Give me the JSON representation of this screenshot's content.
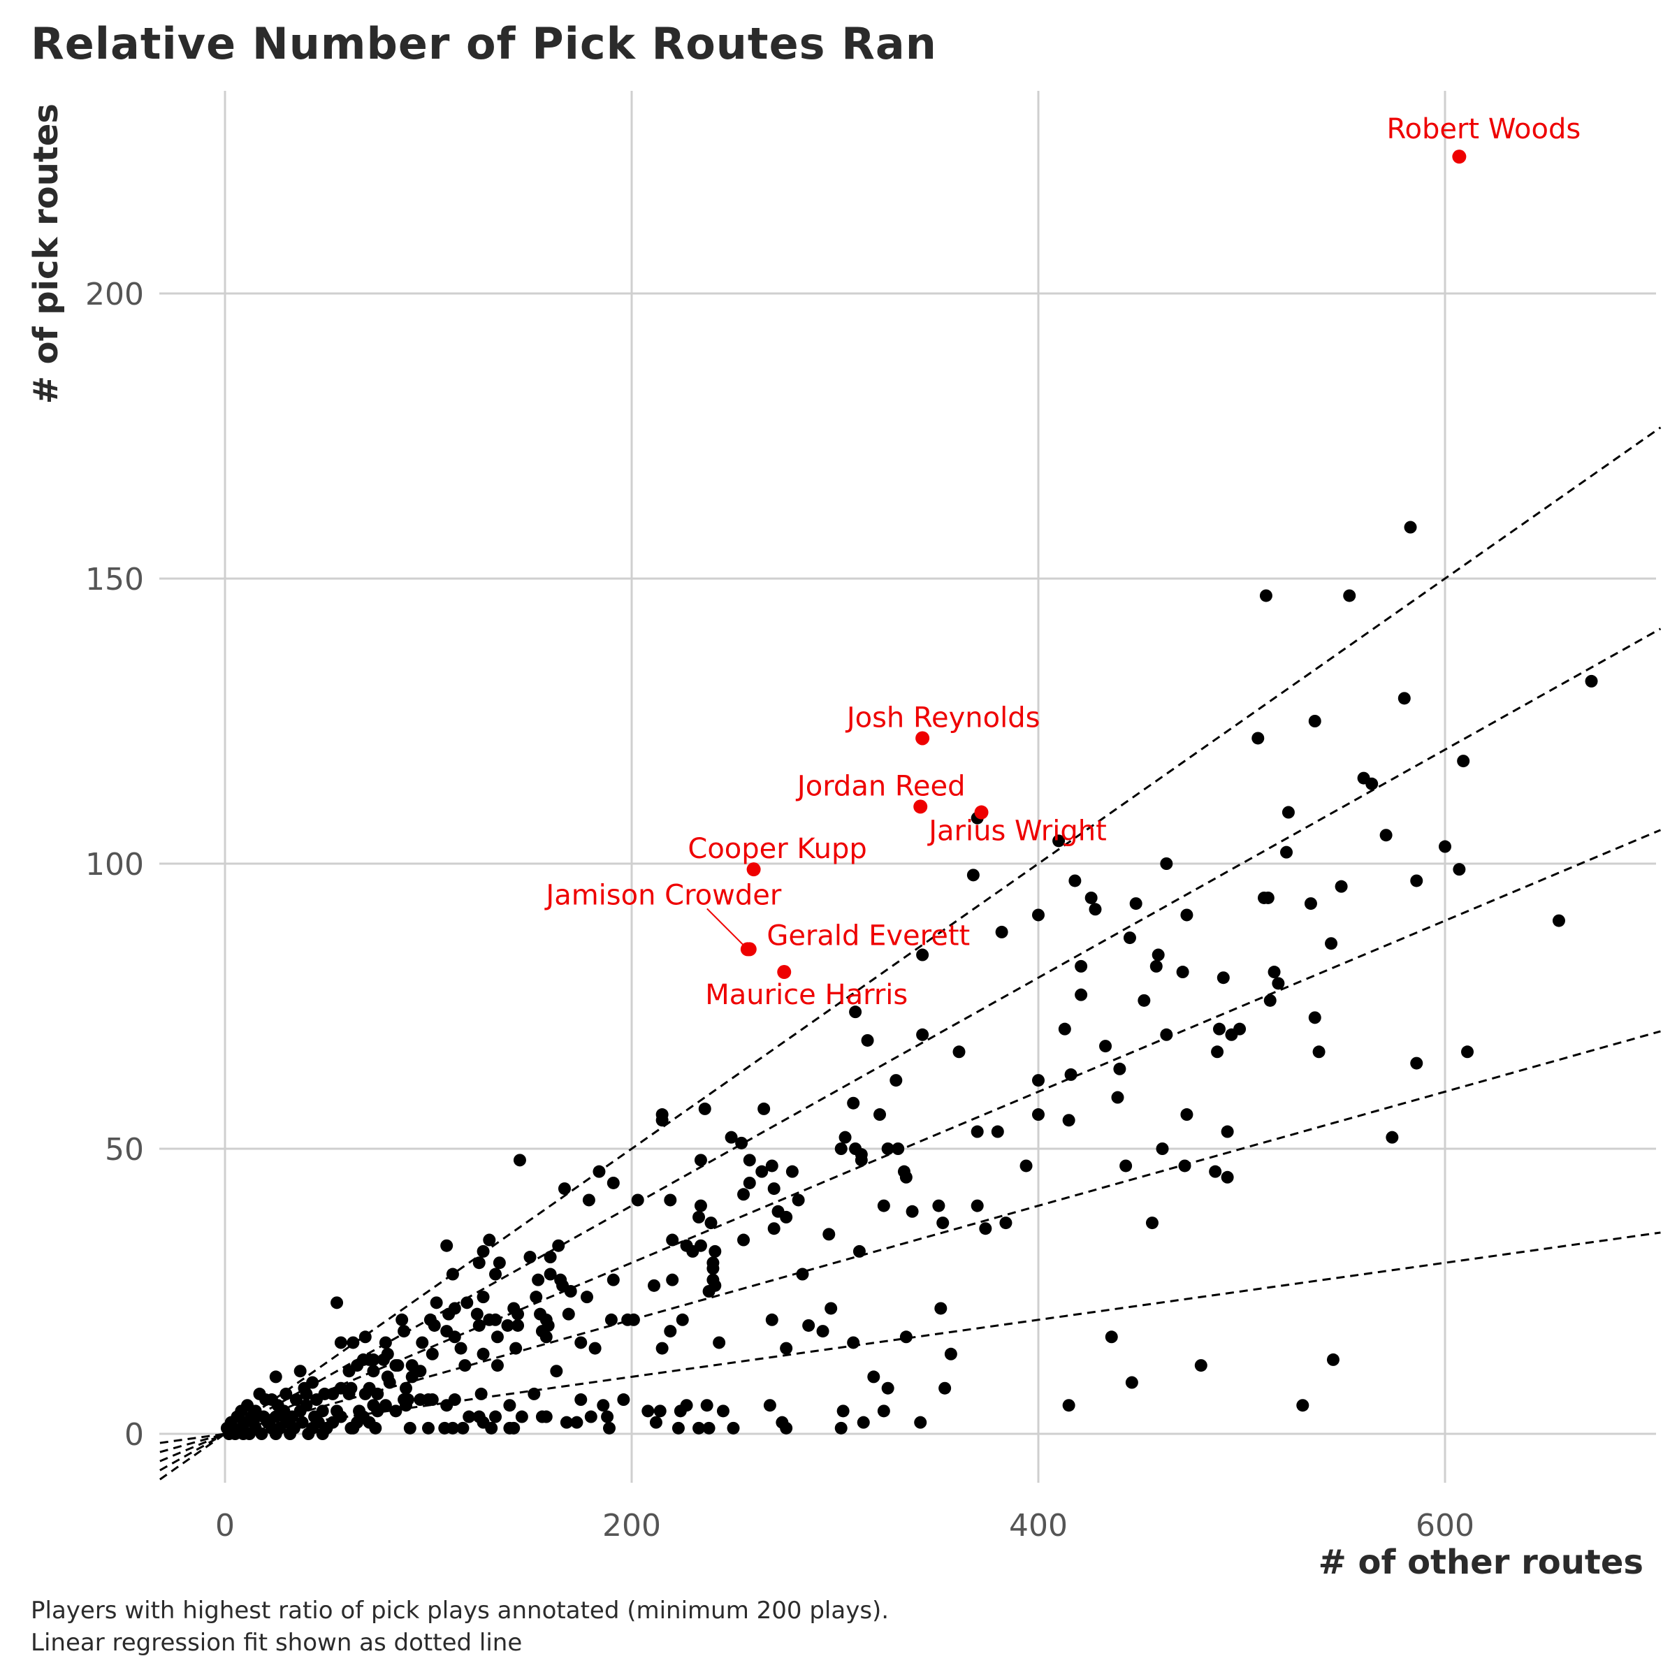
{
  "chart_data": {
    "type": "scatter",
    "title": "Relative Number of Pick Routes Ran",
    "xlabel": "# of other routes",
    "ylabel": "# of pick routes",
    "caption_lines": [
      "Players with highest ratio of pick plays annotated (minimum 200 plays).",
      "Linear regression fit shown as dotted line"
    ],
    "xlim": [
      -32,
      706
    ],
    "ylim": [
      -8,
      236
    ],
    "x_ticks": [
      0,
      200,
      400,
      600
    ],
    "y_ticks": [
      0,
      50,
      100,
      150,
      200
    ],
    "grid": true,
    "colors": {
      "highlight": "#ee0000",
      "points": "#000000",
      "grid": "#cfcfcf",
      "text": "#2b2b2b",
      "axis_text": "#555555"
    },
    "reference_lines": [
      {
        "slope": 0.25,
        "style": "dashed"
      },
      {
        "slope": 0.2,
        "style": "dashed"
      },
      {
        "slope": 0.15,
        "style": "dashed"
      },
      {
        "slope": 0.1,
        "style": "dashed"
      },
      {
        "slope": 0.05,
        "style": "dashed"
      }
    ],
    "highlighted": [
      {
        "name": "Robert Woods",
        "x": 607,
        "y": 224
      },
      {
        "name": "Josh Reynolds",
        "x": 343,
        "y": 122
      },
      {
        "name": "Jordan Reed",
        "x": 342,
        "y": 110
      },
      {
        "name": "Jarius Wright",
        "x": 372,
        "y": 109
      },
      {
        "name": "Cooper Kupp",
        "x": 260,
        "y": 99
      },
      {
        "name": "Jamison Crowder",
        "x": 257,
        "y": 85
      },
      {
        "name": "Gerald Everett",
        "x": 258,
        "y": 85
      },
      {
        "name": "Maurice Harris",
        "x": 275,
        "y": 81
      }
    ],
    "points": [
      [
        583,
        159
      ],
      [
        512,
        147
      ],
      [
        553,
        147
      ],
      [
        672,
        132
      ],
      [
        580,
        129
      ],
      [
        536,
        125
      ],
      [
        508,
        122
      ],
      [
        609,
        118
      ],
      [
        560,
        115
      ],
      [
        564,
        114
      ],
      [
        523,
        109
      ],
      [
        370,
        108
      ],
      [
        571,
        105
      ],
      [
        410,
        104
      ],
      [
        600,
        103
      ],
      [
        522,
        102
      ],
      [
        607,
        99
      ],
      [
        368,
        98
      ],
      [
        586,
        97
      ],
      [
        418,
        97
      ],
      [
        463,
        100
      ],
      [
        549,
        96
      ],
      [
        511,
        94
      ],
      [
        513,
        94
      ],
      [
        426,
        94
      ],
      [
        534,
        93
      ],
      [
        448,
        93
      ],
      [
        428,
        92
      ],
      [
        400,
        91
      ],
      [
        473,
        91
      ],
      [
        656,
        90
      ],
      [
        382,
        88
      ],
      [
        544,
        86
      ],
      [
        445,
        87
      ],
      [
        343,
        84
      ],
      [
        459,
        84
      ],
      [
        458,
        82
      ],
      [
        421,
        82
      ],
      [
        516,
        81
      ],
      [
        471,
        81
      ],
      [
        491,
        80
      ],
      [
        518,
        79
      ],
      [
        421,
        77
      ],
      [
        514,
        76
      ],
      [
        452,
        76
      ],
      [
        310,
        74
      ],
      [
        536,
        73
      ],
      [
        413,
        71
      ],
      [
        489,
        71
      ],
      [
        499,
        71
      ],
      [
        495,
        70
      ],
      [
        343,
        70
      ],
      [
        463,
        70
      ],
      [
        316,
        69
      ],
      [
        433,
        68
      ],
      [
        361,
        67
      ],
      [
        488,
        67
      ],
      [
        538,
        67
      ],
      [
        611,
        67
      ],
      [
        586,
        65
      ],
      [
        440,
        64
      ],
      [
        416,
        63
      ],
      [
        400,
        62
      ],
      [
        330,
        62
      ],
      [
        439,
        59
      ],
      [
        309,
        58
      ],
      [
        400,
        56
      ],
      [
        322,
        56
      ],
      [
        473,
        56
      ],
      [
        415,
        55
      ],
      [
        236,
        57
      ],
      [
        215,
        56
      ],
      [
        215,
        55
      ],
      [
        265,
        57
      ],
      [
        370,
        53
      ],
      [
        380,
        53
      ],
      [
        493,
        53
      ],
      [
        574,
        52
      ],
      [
        249,
        52
      ],
      [
        305,
        52
      ],
      [
        254,
        51
      ],
      [
        326,
        50
      ],
      [
        310,
        50
      ],
      [
        303,
        50
      ],
      [
        313,
        49
      ],
      [
        234,
        48
      ],
      [
        258,
        48
      ],
      [
        461,
        50
      ],
      [
        145,
        48
      ],
      [
        331,
        50
      ],
      [
        269,
        47
      ],
      [
        264,
        46
      ],
      [
        394,
        47
      ],
      [
        334,
        46
      ],
      [
        443,
        47
      ],
      [
        472,
        47
      ],
      [
        279,
        46
      ],
      [
        184,
        46
      ],
      [
        487,
        46
      ],
      [
        313,
        48
      ],
      [
        335,
        45
      ],
      [
        493,
        45
      ],
      [
        191,
        44
      ],
      [
        258,
        44
      ],
      [
        255,
        42
      ],
      [
        270,
        43
      ],
      [
        167,
        43
      ],
      [
        203,
        41
      ],
      [
        179,
        41
      ],
      [
        219,
        41
      ],
      [
        282,
        41
      ],
      [
        234,
        40
      ],
      [
        351,
        40
      ],
      [
        324,
        40
      ],
      [
        370,
        40
      ],
      [
        272,
        39
      ],
      [
        338,
        39
      ],
      [
        233,
        38
      ],
      [
        276,
        38
      ],
      [
        353,
        37
      ],
      [
        384,
        37
      ],
      [
        239,
        37
      ],
      [
        270,
        36
      ],
      [
        374,
        36
      ],
      [
        297,
        35
      ],
      [
        456,
        37
      ],
      [
        220,
        34
      ],
      [
        255,
        34
      ],
      [
        130,
        34
      ],
      [
        150,
        31
      ],
      [
        160,
        31
      ],
      [
        234,
        33
      ],
      [
        227,
        33
      ],
      [
        230,
        32
      ],
      [
        164,
        33
      ],
      [
        241,
        32
      ],
      [
        109,
        33
      ],
      [
        127,
        32
      ],
      [
        135,
        30
      ],
      [
        125,
        30
      ],
      [
        240,
        30
      ],
      [
        312,
        32
      ],
      [
        240,
        29
      ],
      [
        133,
        28
      ],
      [
        160,
        28
      ],
      [
        112,
        28
      ],
      [
        165,
        27
      ],
      [
        154,
        27
      ],
      [
        166,
        26
      ],
      [
        240,
        27
      ],
      [
        284,
        28
      ],
      [
        191,
        27
      ],
      [
        220,
        27
      ],
      [
        211,
        26
      ],
      [
        241,
        26
      ],
      [
        238,
        25
      ],
      [
        170,
        25
      ],
      [
        153,
        24
      ],
      [
        104,
        23
      ],
      [
        127,
        24
      ],
      [
        119,
        23
      ],
      [
        142,
        22
      ],
      [
        113,
        22
      ],
      [
        169,
        21
      ],
      [
        155,
        21
      ],
      [
        110,
        21
      ],
      [
        124,
        21
      ],
      [
        144,
        21
      ],
      [
        178,
        24
      ],
      [
        101,
        20
      ],
      [
        130,
        20
      ],
      [
        133,
        20
      ],
      [
        158,
        20
      ],
      [
        125,
        19
      ],
      [
        87,
        20
      ],
      [
        109,
        18
      ],
      [
        139,
        19
      ],
      [
        103,
        19
      ],
      [
        144,
        19
      ],
      [
        159,
        19
      ],
      [
        190,
        20
      ],
      [
        198,
        20
      ],
      [
        201,
        20
      ],
      [
        225,
        20
      ],
      [
        269,
        20
      ],
      [
        287,
        19
      ],
      [
        294,
        18
      ],
      [
        298,
        22
      ],
      [
        352,
        22
      ],
      [
        219,
        18
      ],
      [
        156,
        18
      ],
      [
        113,
        17
      ],
      [
        69,
        17
      ],
      [
        88,
        18
      ],
      [
        97,
        16
      ],
      [
        134,
        17
      ],
      [
        158,
        17
      ],
      [
        175,
        16
      ],
      [
        215,
        15
      ],
      [
        243,
        16
      ],
      [
        276,
        15
      ],
      [
        309,
        16
      ],
      [
        335,
        17
      ],
      [
        357,
        14
      ],
      [
        436,
        17
      ],
      [
        480,
        12
      ],
      [
        545,
        13
      ],
      [
        79,
        16
      ],
      [
        63,
        16
      ],
      [
        57,
        16
      ],
      [
        55,
        23
      ],
      [
        116,
        15
      ],
      [
        127,
        14
      ],
      [
        143,
        15
      ],
      [
        182,
        15
      ],
      [
        102,
        14
      ],
      [
        80,
        14
      ],
      [
        73,
        13
      ],
      [
        68,
        13
      ],
      [
        71,
        13
      ],
      [
        78,
        13
      ],
      [
        85,
        12
      ],
      [
        92,
        12
      ],
      [
        118,
        12
      ],
      [
        134,
        12
      ],
      [
        84,
        12
      ],
      [
        61,
        11
      ],
      [
        65,
        12
      ],
      [
        73,
        11
      ],
      [
        80,
        10
      ],
      [
        92,
        10
      ],
      [
        96,
        11
      ],
      [
        163,
        11
      ],
      [
        319,
        10
      ],
      [
        326,
        8
      ],
      [
        354,
        8
      ],
      [
        446,
        9
      ],
      [
        37,
        11
      ],
      [
        43,
        9
      ],
      [
        25,
        10
      ],
      [
        39,
        8
      ],
      [
        57,
        8
      ],
      [
        62,
        8
      ],
      [
        71,
        8
      ],
      [
        81,
        9
      ],
      [
        89,
        8
      ],
      [
        49,
        7
      ],
      [
        61,
        7
      ],
      [
        90,
        6
      ],
      [
        69,
        7
      ],
      [
        17,
        7
      ],
      [
        30,
        7
      ],
      [
        40,
        7
      ],
      [
        53,
        7
      ],
      [
        75,
        7
      ],
      [
        88,
        6
      ],
      [
        96,
        6
      ],
      [
        100,
        6
      ],
      [
        102,
        6
      ],
      [
        113,
        6
      ],
      [
        126,
        7
      ],
      [
        152,
        7
      ],
      [
        175,
        6
      ],
      [
        196,
        6
      ],
      [
        20,
        6
      ],
      [
        23,
        6
      ],
      [
        35,
        6
      ],
      [
        45,
        6
      ],
      [
        73,
        5
      ],
      [
        79,
        5
      ],
      [
        89,
        5
      ],
      [
        109,
        5
      ],
      [
        140,
        5
      ],
      [
        186,
        5
      ],
      [
        268,
        5
      ],
      [
        237,
        5
      ],
      [
        227,
        5
      ],
      [
        224,
        4
      ],
      [
        208,
        4
      ],
      [
        214,
        4
      ],
      [
        245,
        4
      ],
      [
        304,
        4
      ],
      [
        324,
        4
      ],
      [
        415,
        5
      ],
      [
        530,
        5
      ],
      [
        11,
        5
      ],
      [
        26,
        5
      ],
      [
        40,
        5
      ],
      [
        48,
        4
      ],
      [
        66,
        4
      ],
      [
        75,
        4
      ],
      [
        84,
        4
      ],
      [
        8,
        4
      ],
      [
        15,
        4
      ],
      [
        29,
        4
      ],
      [
        37,
        4
      ],
      [
        55,
        4
      ],
      [
        125,
        3
      ],
      [
        133,
        3
      ],
      [
        156,
        3
      ],
      [
        158,
        3
      ],
      [
        180,
        3
      ],
      [
        188,
        3
      ],
      [
        6,
        3
      ],
      [
        13,
        3
      ],
      [
        19,
        3
      ],
      [
        25,
        3
      ],
      [
        33,
        3
      ],
      [
        44,
        3
      ],
      [
        57,
        3
      ],
      [
        68,
        3
      ],
      [
        120,
        3
      ],
      [
        127,
        2
      ],
      [
        146,
        3
      ],
      [
        168,
        2
      ],
      [
        173,
        2
      ],
      [
        212,
        2
      ],
      [
        274,
        2
      ],
      [
        314,
        2
      ],
      [
        342,
        2
      ],
      [
        3,
        2
      ],
      [
        10,
        2
      ],
      [
        14,
        2
      ],
      [
        21,
        2
      ],
      [
        30,
        2
      ],
      [
        38,
        2
      ],
      [
        46,
        2
      ],
      [
        53,
        2
      ],
      [
        65,
        2
      ],
      [
        71,
        2
      ],
      [
        91,
        1
      ],
      [
        100,
        1
      ],
      [
        108,
        1
      ],
      [
        112,
        1
      ],
      [
        117,
        1
      ],
      [
        131,
        1
      ],
      [
        140,
        1
      ],
      [
        142,
        1
      ],
      [
        189,
        1
      ],
      [
        223,
        1
      ],
      [
        233,
        1
      ],
      [
        238,
        1
      ],
      [
        250,
        1
      ],
      [
        276,
        1
      ],
      [
        303,
        1
      ],
      [
        1,
        1
      ],
      [
        4,
        1
      ],
      [
        8,
        1
      ],
      [
        15,
        1
      ],
      [
        23,
        1
      ],
      [
        27,
        1
      ],
      [
        34,
        1
      ],
      [
        43,
        1
      ],
      [
        50,
        1
      ],
      [
        62,
        1
      ],
      [
        63,
        1
      ],
      [
        74,
        1
      ],
      [
        2,
        0
      ],
      [
        5,
        0
      ],
      [
        9,
        0
      ],
      [
        12,
        0
      ],
      [
        18,
        0
      ],
      [
        25,
        0
      ],
      [
        32,
        0
      ],
      [
        41,
        0
      ],
      [
        48,
        0
      ]
    ]
  }
}
